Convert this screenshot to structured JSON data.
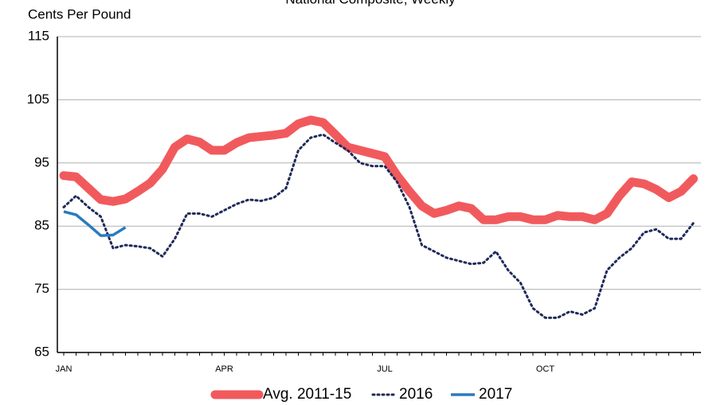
{
  "chart_data": {
    "type": "line",
    "title": "National Composite, Weekly",
    "y_label": "Cents Per Pound",
    "categories": [
      "JAN",
      null,
      null,
      null,
      null,
      null,
      null,
      null,
      null,
      null,
      null,
      null,
      null,
      "APR",
      null,
      null,
      null,
      null,
      null,
      null,
      null,
      null,
      null,
      null,
      null,
      null,
      "JUL",
      null,
      null,
      null,
      null,
      null,
      null,
      null,
      null,
      null,
      null,
      null,
      null,
      "OCT",
      null,
      null,
      null,
      null,
      null,
      null,
      null,
      null,
      null,
      null,
      null,
      null
    ],
    "series": [
      {
        "name": "Avg. 2011-15",
        "color": "#f15a5d",
        "style": "thick",
        "values": [
          93,
          92.8,
          91,
          89.2,
          88.9,
          89.3,
          90.5,
          91.8,
          94,
          97.5,
          98.8,
          98.3,
          97,
          97,
          98.2,
          99,
          99.2,
          99.4,
          99.7,
          101.2,
          101.8,
          101.4,
          99.5,
          97.5,
          97,
          96.5,
          96,
          93,
          90.5,
          88.2,
          87,
          87.5,
          88.2,
          87.8,
          86,
          86,
          86.5,
          86.5,
          86,
          86,
          86.7,
          86.5,
          86.5,
          86,
          87,
          89.8,
          92,
          91.7,
          90.8,
          89.5,
          90.5,
          92.5
        ]
      },
      {
        "name": "2016",
        "color": "#1f2a5a",
        "style": "dotted",
        "values": [
          88,
          89.8,
          88,
          86.5,
          81.5,
          82,
          81.8,
          81.5,
          80.2,
          83,
          87,
          87,
          86.5,
          87.5,
          88.5,
          89.2,
          89,
          89.5,
          91,
          97,
          99,
          99.5,
          98.2,
          97,
          95,
          94.5,
          94.5,
          92,
          88,
          82,
          81,
          80,
          79.5,
          79,
          79.2,
          81,
          78,
          76,
          72,
          70.5,
          70.5,
          71.5,
          71,
          72,
          78,
          80,
          81.5,
          84,
          84.5,
          83,
          83,
          85.5
        ]
      },
      {
        "name": "2017",
        "color": "#2a7bbf",
        "style": "solid",
        "values": [
          87.3,
          86.8,
          85.2,
          83.5,
          83.6,
          84.8,
          null,
          null,
          null,
          null,
          null,
          null,
          null,
          null,
          null,
          null,
          null,
          null,
          null,
          null,
          null,
          null,
          null,
          null,
          null,
          null,
          null,
          null,
          null,
          null,
          null,
          null,
          null,
          null,
          null,
          null,
          null,
          null,
          null,
          null,
          null,
          null,
          null,
          null,
          null,
          null,
          null,
          null,
          null,
          null,
          null,
          null
        ]
      }
    ],
    "ylim": [
      65,
      115
    ],
    "yticks": [
      65,
      75,
      85,
      95,
      105,
      115
    ],
    "grid": true,
    "legend": "bottom"
  }
}
